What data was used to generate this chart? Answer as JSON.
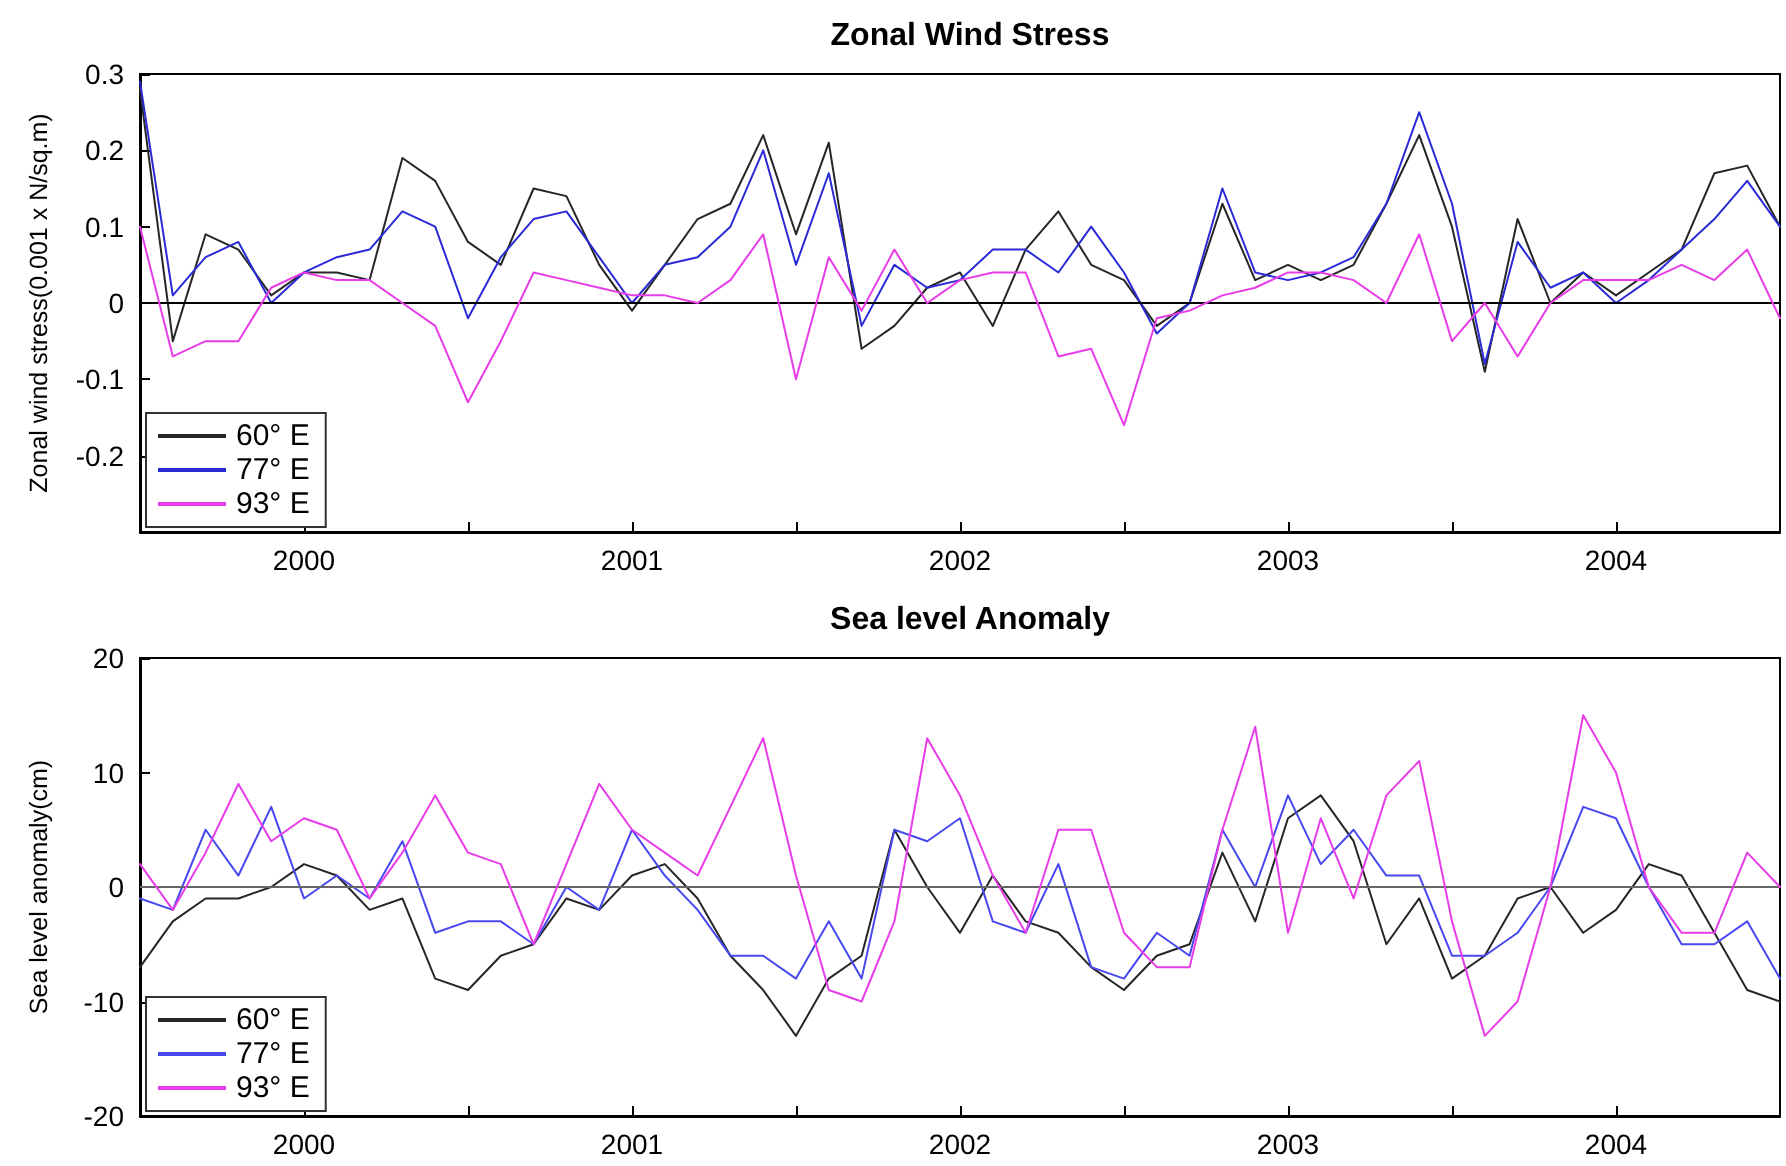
{
  "chart_data": [
    {
      "type": "line",
      "title": "Zonal Wind Stress",
      "ylabel": "Zonal wind stress(0.001 x N/sq.m)",
      "legend": "lower left",
      "grid": false,
      "xlim": [
        1999.5,
        2004.5
      ],
      "xticks": [
        2000,
        {
          "value": 2000.5,
          "label": null
        },
        2001,
        {
          "value": 2001.5,
          "label": null
        },
        2002,
        {
          "value": 2002.5,
          "label": null
        },
        2003,
        {
          "value": 2003.5,
          "label": null
        },
        2004
      ],
      "ylim": [
        -0.3,
        0.3
      ],
      "yticks": [
        -0.2,
        -0.1,
        0,
        0.1,
        0.2,
        0.3
      ],
      "ref_lines": [
        {
          "axis": "y",
          "value": 0,
          "label": null,
          "color": "#000000"
        }
      ],
      "x": [
        1999.5,
        1999.6,
        1999.7,
        1999.8,
        1999.9,
        2000.0,
        2000.1,
        2000.2,
        2000.3,
        2000.4,
        2000.5,
        2000.6,
        2000.7,
        2000.8,
        2000.9,
        2001.0,
        2001.1,
        2001.2,
        2001.3,
        2001.4,
        2001.5,
        2001.6,
        2001.7,
        2001.8,
        2001.9,
        2002.0,
        2002.1,
        2002.2,
        2002.3,
        2002.4,
        2002.5,
        2002.6,
        2002.7,
        2002.8,
        2002.9,
        2003.0,
        2003.1,
        2003.2,
        2003.3,
        2003.4,
        2003.5,
        2003.6,
        2003.7,
        2003.8,
        2003.9,
        2004.0,
        2004.1,
        2004.2,
        2004.3,
        2004.4,
        2004.5
      ],
      "series": [
        {
          "name": "60° E",
          "color": "#262626",
          "values": [
            0.28,
            -0.05,
            0.09,
            0.07,
            0.01,
            0.04,
            0.04,
            0.03,
            0.19,
            0.16,
            0.08,
            0.05,
            0.15,
            0.14,
            0.05,
            -0.01,
            0.05,
            0.11,
            0.13,
            0.22,
            0.09,
            0.21,
            -0.06,
            -0.03,
            0.02,
            0.04,
            -0.03,
            0.07,
            0.12,
            0.05,
            0.03,
            -0.03,
            0.0,
            0.13,
            0.03,
            0.05,
            0.03,
            0.05,
            0.13,
            0.22,
            0.1,
            -0.09,
            0.11,
            0.0,
            0.04,
            0.01,
            0.04,
            0.07,
            0.17,
            0.18,
            0.1
          ]
        },
        {
          "name": "77° E",
          "color": "#2a2ad6",
          "values": [
            0.29,
            0.01,
            0.06,
            0.08,
            0.0,
            0.04,
            0.06,
            0.07,
            0.12,
            0.1,
            -0.02,
            0.06,
            0.11,
            0.12,
            0.06,
            0.0,
            0.05,
            0.06,
            0.1,
            0.2,
            0.05,
            0.17,
            -0.03,
            0.05,
            0.02,
            0.03,
            0.07,
            0.07,
            0.04,
            0.1,
            0.04,
            -0.04,
            0.0,
            0.15,
            0.04,
            0.03,
            0.04,
            0.06,
            0.13,
            0.25,
            0.13,
            -0.08,
            0.08,
            0.02,
            0.04,
            0.0,
            0.03,
            0.07,
            0.11,
            0.16,
            0.1
          ]
        },
        {
          "name": "93° E",
          "color": "#e83ce8",
          "values": [
            0.1,
            -0.07,
            -0.05,
            -0.05,
            0.02,
            0.04,
            0.03,
            0.03,
            0.0,
            -0.03,
            -0.13,
            -0.05,
            0.04,
            0.03,
            0.02,
            0.01,
            0.01,
            0.0,
            0.03,
            0.09,
            -0.1,
            0.06,
            -0.01,
            0.07,
            0.0,
            0.03,
            0.04,
            0.04,
            -0.07,
            -0.06,
            -0.16,
            -0.02,
            -0.01,
            0.01,
            0.02,
            0.04,
            0.04,
            0.03,
            0.0,
            0.09,
            -0.05,
            0.0,
            -0.07,
            0.0,
            0.03,
            0.03,
            0.03,
            0.05,
            0.03,
            0.07,
            -0.02
          ]
        }
      ]
    },
    {
      "type": "line",
      "title": "Sea level Anomaly",
      "ylabel": "Sea level anomaly(cm)",
      "legend": "lower left",
      "grid": false,
      "xlim": [
        1999.5,
        2004.5
      ],
      "xticks": [
        2000,
        {
          "value": 2000.5,
          "label": null
        },
        2001,
        {
          "value": 2001.5,
          "label": null
        },
        2002,
        {
          "value": 2002.5,
          "label": null
        },
        2003,
        {
          "value": 2003.5,
          "label": null
        },
        2004
      ],
      "ylim": [
        -20,
        20
      ],
      "yticks": [
        -20,
        -10,
        0,
        10,
        20
      ],
      "ref_lines": [
        {
          "axis": "y",
          "value": 0,
          "label": null,
          "color": "#666666"
        }
      ],
      "x": [
        1999.5,
        1999.6,
        1999.7,
        1999.8,
        1999.9,
        2000.0,
        2000.1,
        2000.2,
        2000.3,
        2000.4,
        2000.5,
        2000.6,
        2000.7,
        2000.8,
        2000.9,
        2001.0,
        2001.1,
        2001.2,
        2001.3,
        2001.4,
        2001.5,
        2001.6,
        2001.7,
        2001.8,
        2001.9,
        2002.0,
        2002.1,
        2002.2,
        2002.3,
        2002.4,
        2002.5,
        2002.6,
        2002.7,
        2002.8,
        2002.9,
        2003.0,
        2003.1,
        2003.2,
        2003.3,
        2003.4,
        2003.5,
        2003.6,
        2003.7,
        2003.8,
        2003.9,
        2004.0,
        2004.1,
        2004.2,
        2004.3,
        2004.4,
        2004.5
      ],
      "series": [
        {
          "name": "60° E",
          "color": "#262626",
          "values": [
            -7,
            -3,
            -1,
            -1,
            0,
            2,
            1,
            -2,
            -1,
            -8,
            -9,
            -6,
            -5,
            -1,
            -2,
            1,
            2,
            -1,
            -6,
            -9,
            -13,
            -8,
            -6,
            5,
            0,
            -4,
            1,
            -3,
            -4,
            -7,
            -9,
            -6,
            -5,
            3,
            -3,
            6,
            8,
            4,
            -5,
            -1,
            -8,
            -6,
            -1,
            0,
            -4,
            -2,
            2,
            1,
            -4,
            -9,
            -10
          ]
        },
        {
          "name": "77° E",
          "color": "#4848f0",
          "values": [
            -1,
            -2,
            5,
            1,
            7,
            -1,
            1,
            -1,
            4,
            -4,
            -3,
            -3,
            -5,
            0,
            -2,
            5,
            1,
            -2,
            -6,
            -6,
            -8,
            -3,
            -8,
            5,
            4,
            6,
            -3,
            -4,
            2,
            -7,
            -8,
            -4,
            -6,
            5,
            0,
            8,
            2,
            5,
            1,
            1,
            -6,
            -6,
            -4,
            0,
            7,
            6,
            0,
            -5,
            -5,
            -3,
            -8
          ]
        },
        {
          "name": "93° E",
          "color": "#e83ce8",
          "values": [
            2,
            -2,
            3,
            9,
            4,
            6,
            5,
            -1,
            3,
            8,
            3,
            2,
            -5,
            2,
            9,
            5,
            3,
            1,
            7,
            13,
            1,
            -9,
            -10,
            -3,
            13,
            8,
            1,
            -4,
            5,
            5,
            -4,
            -7,
            -7,
            5,
            14,
            -4,
            6,
            -1,
            8,
            11,
            -3,
            -13,
            -10,
            0,
            15,
            10,
            0,
            -4,
            -4,
            3,
            0
          ]
        }
      ]
    }
  ]
}
